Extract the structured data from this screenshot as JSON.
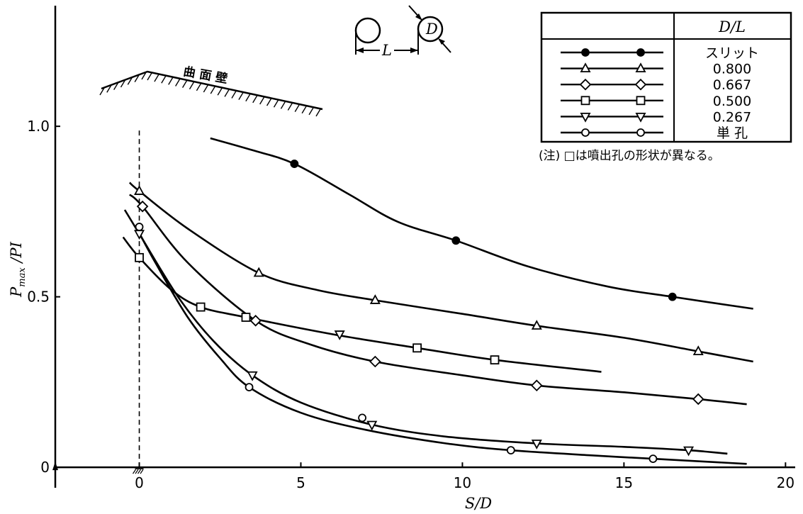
{
  "chart_data": {
    "type": "line",
    "xlabel": "S/D",
    "ylabel": "P",
    "ylabel_sub": "max",
    "ylabel_tail": " /PI",
    "xlim": [
      -2.6,
      20.3
    ],
    "ylim": [
      -0.06,
      1.36
    ],
    "xticks": [
      0,
      5,
      10,
      15,
      20
    ],
    "xtick_labels": [
      "0",
      "5",
      "10",
      "15",
      "20"
    ],
    "yticks": [
      0,
      0.5,
      1.0
    ],
    "ytick_labels": [
      "0",
      "0.5",
      "1.0"
    ],
    "legend_header": "D/L",
    "legend_position": "top-right",
    "note": "(注) □は噴出孔の形状が異なる。",
    "wall_label": "曲 面 壁",
    "schematic_labels": {
      "pitch": "L",
      "diameter": "D"
    },
    "series": [
      {
        "name": "スリット",
        "marker": "filled-circle",
        "curve": [
          [
            2.2,
            0.965
          ],
          [
            3.5,
            0.93
          ],
          [
            4.8,
            0.89
          ],
          [
            6.5,
            0.8
          ],
          [
            8.0,
            0.72
          ],
          [
            9.8,
            0.665
          ],
          [
            12,
            0.59
          ],
          [
            14.5,
            0.53
          ],
          [
            16.5,
            0.5
          ],
          [
            19,
            0.465
          ]
        ],
        "points": [
          [
            4.8,
            0.89
          ],
          [
            9.8,
            0.665
          ],
          [
            16.5,
            0.5
          ]
        ]
      },
      {
        "name": "0.800",
        "marker": "triangle-up",
        "curve": [
          [
            -0.3,
            0.835
          ],
          [
            0,
            0.81
          ],
          [
            1.5,
            0.7
          ],
          [
            3.7,
            0.57
          ],
          [
            5.5,
            0.52
          ],
          [
            7.3,
            0.49
          ],
          [
            10,
            0.45
          ],
          [
            12.3,
            0.415
          ],
          [
            15,
            0.38
          ],
          [
            17.3,
            0.34
          ],
          [
            19,
            0.31
          ]
        ],
        "points": [
          [
            0,
            0.81
          ],
          [
            3.7,
            0.57
          ],
          [
            7.3,
            0.49
          ],
          [
            12.3,
            0.415
          ],
          [
            17.3,
            0.34
          ]
        ]
      },
      {
        "name": "0.667",
        "marker": "diamond",
        "curve": [
          [
            -0.3,
            0.8
          ],
          [
            0.1,
            0.765
          ],
          [
            1.5,
            0.6
          ],
          [
            3.6,
            0.43
          ],
          [
            5.3,
            0.36
          ],
          [
            7.3,
            0.31
          ],
          [
            10,
            0.27
          ],
          [
            12.3,
            0.24
          ],
          [
            15,
            0.22
          ],
          [
            17.3,
            0.2
          ],
          [
            18.8,
            0.185
          ]
        ],
        "points": [
          [
            0.1,
            0.765
          ],
          [
            3.6,
            0.43
          ],
          [
            7.3,
            0.31
          ],
          [
            12.3,
            0.24
          ],
          [
            17.3,
            0.2
          ]
        ]
      },
      {
        "name": "0.500",
        "marker": "square",
        "curve": [
          [
            -0.5,
            0.675
          ],
          [
            0,
            0.615
          ],
          [
            1.0,
            0.52
          ],
          [
            1.9,
            0.47
          ],
          [
            3.3,
            0.44
          ],
          [
            6,
            0.39
          ],
          [
            8.6,
            0.35
          ],
          [
            11,
            0.315
          ],
          [
            14.3,
            0.28
          ]
        ],
        "points": [
          [
            0,
            0.615
          ],
          [
            1.9,
            0.47
          ],
          [
            3.3,
            0.44
          ],
          [
            8.6,
            0.35
          ],
          [
            11,
            0.315
          ]
        ]
      },
      {
        "name": "0.267",
        "marker": "triangle-down",
        "curve": [
          [
            -0.45,
            0.755
          ],
          [
            0,
            0.685
          ],
          [
            1.2,
            0.5
          ],
          [
            2.3,
            0.37
          ],
          [
            3.5,
            0.27
          ],
          [
            5,
            0.19
          ],
          [
            7.2,
            0.125
          ],
          [
            9.5,
            0.09
          ],
          [
            12.3,
            0.07
          ],
          [
            15,
            0.06
          ],
          [
            17,
            0.05
          ],
          [
            18.2,
            0.04
          ]
        ],
        "points": [
          [
            0,
            0.685
          ],
          [
            3.5,
            0.27
          ],
          [
            6.2,
            0.39
          ],
          [
            7.2,
            0.125
          ],
          [
            12.3,
            0.07
          ],
          [
            17,
            0.05
          ]
        ]
      },
      {
        "name": "単 孔",
        "marker": "circle",
        "curve": [
          [
            -0.1,
            0.705
          ],
          [
            0.5,
            0.6
          ],
          [
            1.5,
            0.44
          ],
          [
            2.5,
            0.32
          ],
          [
            3.4,
            0.235
          ],
          [
            5,
            0.16
          ],
          [
            7,
            0.11
          ],
          [
            9.5,
            0.07
          ],
          [
            11.5,
            0.05
          ],
          [
            14,
            0.035
          ],
          [
            15.9,
            0.025
          ],
          [
            18.8,
            0.01
          ]
        ],
        "points": [
          [
            0,
            0.705
          ],
          [
            3.4,
            0.235
          ],
          [
            6.9,
            0.145
          ],
          [
            11.5,
            0.05
          ],
          [
            15.9,
            0.025
          ]
        ]
      }
    ]
  }
}
